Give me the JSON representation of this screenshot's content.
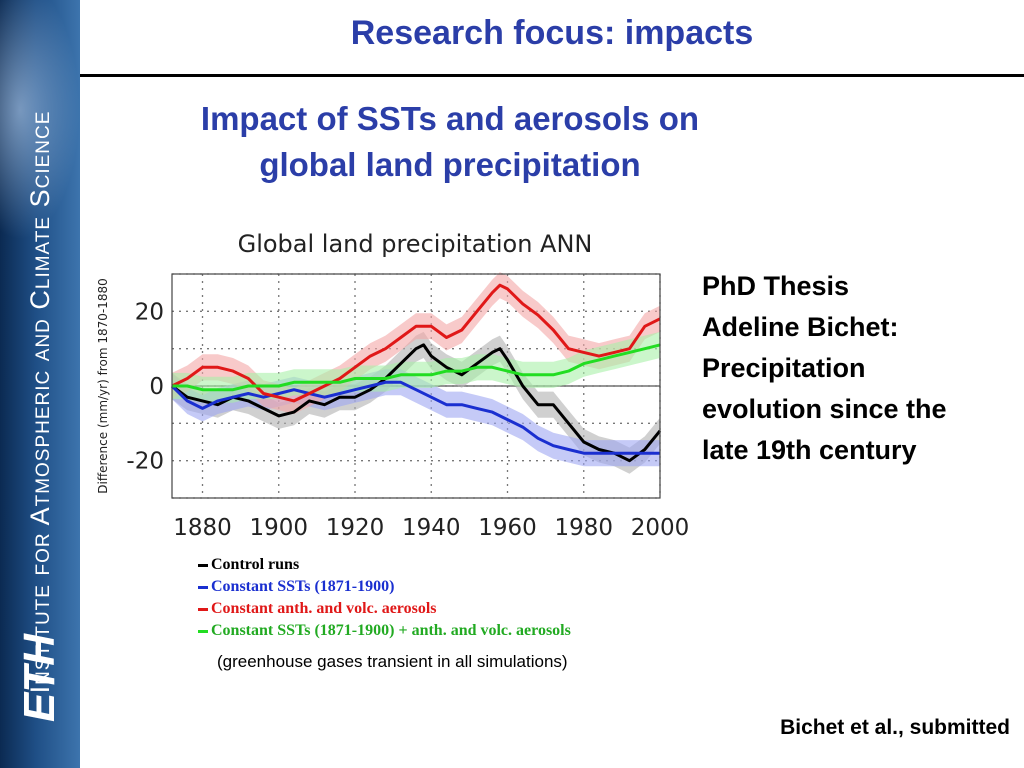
{
  "slide": {
    "title": "Research focus: impacts",
    "subtitle_lines": [
      "Impact of SSTs and aerosols on",
      "global land precipitation"
    ],
    "side_note_lines": [
      "PhD Thesis",
      "Adeline Bichet:",
      "Precipitation",
      "evolution since the",
      "late 19th century"
    ],
    "citation": "Bichet et al., submitted",
    "sidebar_label": "Institute for Atmospheric and Climate Science",
    "sidebar_logo": "ETH"
  },
  "chart_data": {
    "type": "line",
    "title": "Global land precipitation ANN",
    "ylabel": "Difference (mm/yr) from 1870-1880",
    "xlim": [
      1872,
      2000
    ],
    "ylim": [
      -30,
      30
    ],
    "x_ticks": [
      1880,
      1900,
      1920,
      1940,
      1960,
      1980,
      2000
    ],
    "y_ticks": [
      20,
      0,
      -20
    ],
    "zero_line": true,
    "grid": true,
    "legend_note": "(greenhouse gases transient in all simulations)",
    "series": [
      {
        "name": "Control runs",
        "color": "#000000",
        "band_color": "#b0b0b0",
        "x": [
          1872,
          1876,
          1880,
          1884,
          1888,
          1892,
          1896,
          1900,
          1904,
          1908,
          1912,
          1916,
          1920,
          1924,
          1928,
          1932,
          1936,
          1938,
          1940,
          1944,
          1948,
          1952,
          1956,
          1958,
          1960,
          1964,
          1968,
          1972,
          1976,
          1980,
          1984,
          1988,
          1992,
          1996,
          2000
        ],
        "values": [
          0,
          -3,
          -4,
          -5,
          -3,
          -4,
          -6,
          -8,
          -7,
          -4,
          -5,
          -3,
          -3,
          -1,
          2,
          6,
          10,
          11,
          8,
          5,
          3,
          6,
          9,
          10,
          7,
          0,
          -5,
          -5,
          -10,
          -15,
          -17,
          -18,
          -20,
          -17,
          -12
        ]
      },
      {
        "name": "Constant SSTs (1871-1900)",
        "color": "#1a2fd0",
        "band_color": "#9fa6f2",
        "x": [
          1872,
          1876,
          1880,
          1884,
          1888,
          1892,
          1896,
          1900,
          1904,
          1908,
          1912,
          1916,
          1920,
          1924,
          1928,
          1932,
          1936,
          1940,
          1944,
          1948,
          1952,
          1956,
          1960,
          1964,
          1968,
          1972,
          1976,
          1980,
          1984,
          1988,
          1992,
          1996,
          2000
        ],
        "values": [
          0,
          -4,
          -6,
          -4,
          -3,
          -2,
          -3,
          -2,
          -1,
          -2,
          -3,
          -2,
          -1,
          0,
          1,
          1,
          -1,
          -3,
          -5,
          -5,
          -6,
          -7,
          -9,
          -11,
          -14,
          -16,
          -17,
          -18,
          -18,
          -18,
          -18,
          -18,
          -18
        ]
      },
      {
        "name": "Constant anth. and volc. aerosols",
        "color": "#e01818",
        "band_color": "#f4a7a7",
        "x": [
          1872,
          1876,
          1880,
          1884,
          1888,
          1892,
          1896,
          1900,
          1904,
          1908,
          1912,
          1916,
          1920,
          1924,
          1928,
          1932,
          1936,
          1940,
          1944,
          1948,
          1952,
          1956,
          1958,
          1960,
          1964,
          1968,
          1972,
          1976,
          1980,
          1984,
          1988,
          1992,
          1996,
          2000
        ],
        "values": [
          0,
          2,
          5,
          5,
          4,
          2,
          -2,
          -3,
          -4,
          -2,
          0,
          2,
          5,
          8,
          10,
          13,
          16,
          16,
          13,
          15,
          20,
          25,
          27,
          26,
          22,
          19,
          15,
          10,
          9,
          8,
          9,
          10,
          16,
          18
        ]
      },
      {
        "name": "Constant SSTs (1871-1900) + anth. and volc. aerosols",
        "color": "#22dd22",
        "band_color": "#a9f0a9",
        "x": [
          1872,
          1876,
          1880,
          1884,
          1888,
          1892,
          1896,
          1900,
          1904,
          1908,
          1912,
          1916,
          1920,
          1924,
          1928,
          1932,
          1936,
          1940,
          1944,
          1948,
          1952,
          1956,
          1960,
          1964,
          1968,
          1972,
          1976,
          1980,
          1984,
          1988,
          1992,
          1996,
          2000
        ],
        "values": [
          0,
          0,
          -1,
          -1,
          -1,
          0,
          0,
          0,
          1,
          1,
          1,
          1,
          2,
          2,
          2,
          3,
          3,
          3,
          4,
          4,
          5,
          5,
          4,
          3,
          3,
          3,
          4,
          6,
          7,
          8,
          9,
          10,
          11
        ]
      }
    ]
  }
}
